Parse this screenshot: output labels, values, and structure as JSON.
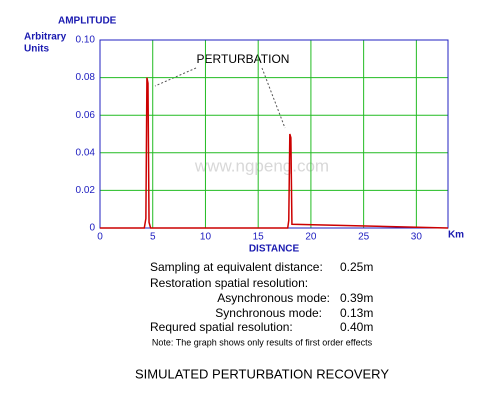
{
  "chart_data": {
    "type": "line",
    "y_label": "AMPLITUDE",
    "y_unit_lines": [
      "Arbitrary",
      "Units"
    ],
    "x_label": "DISTANCE",
    "x_unit": "Km",
    "watermark": "www.ngpeng.com",
    "annotation": "PERTURBATION",
    "xlim": [
      0,
      33
    ],
    "ylim": [
      0,
      0.1
    ],
    "xticks": [
      0,
      5,
      10,
      15,
      20,
      25,
      30
    ],
    "yticks": [
      0,
      0.02,
      0.04,
      0.06,
      0.08,
      {
        "value": 0.1,
        "label": "0.10"
      }
    ],
    "grid": true,
    "grid_color": "#22bb22",
    "axis_color": "#2020c0",
    "series": [
      {
        "color": "#cc0000",
        "x": [
          0,
          4.2,
          4.35,
          4.45,
          4.55,
          4.65,
          4.8,
          17.8,
          17.9,
          18.0,
          18.1,
          18.2,
          33
        ],
        "values": [
          0,
          0,
          0.005,
          0.08,
          0.077,
          0.003,
          0,
          0,
          0.004,
          0.05,
          0.048,
          0.002,
          0
        ]
      }
    ]
  },
  "notes": [
    {
      "label": "Sampling at equivalent distance:",
      "value": "0.25m"
    },
    {
      "label": "Restoration spatial resolution:"
    },
    {
      "label": "Asynchronous mode:",
      "value": "0.39m"
    },
    {
      "label": "Synchronous mode:",
      "value": "0.13m"
    },
    {
      "label": "Requred spatial resolution:",
      "value": "0.40m"
    }
  ],
  "footnote": "Note: The graph shows only results of first order effects",
  "title": "SIMULATED PERTURBATION RECOVERY"
}
